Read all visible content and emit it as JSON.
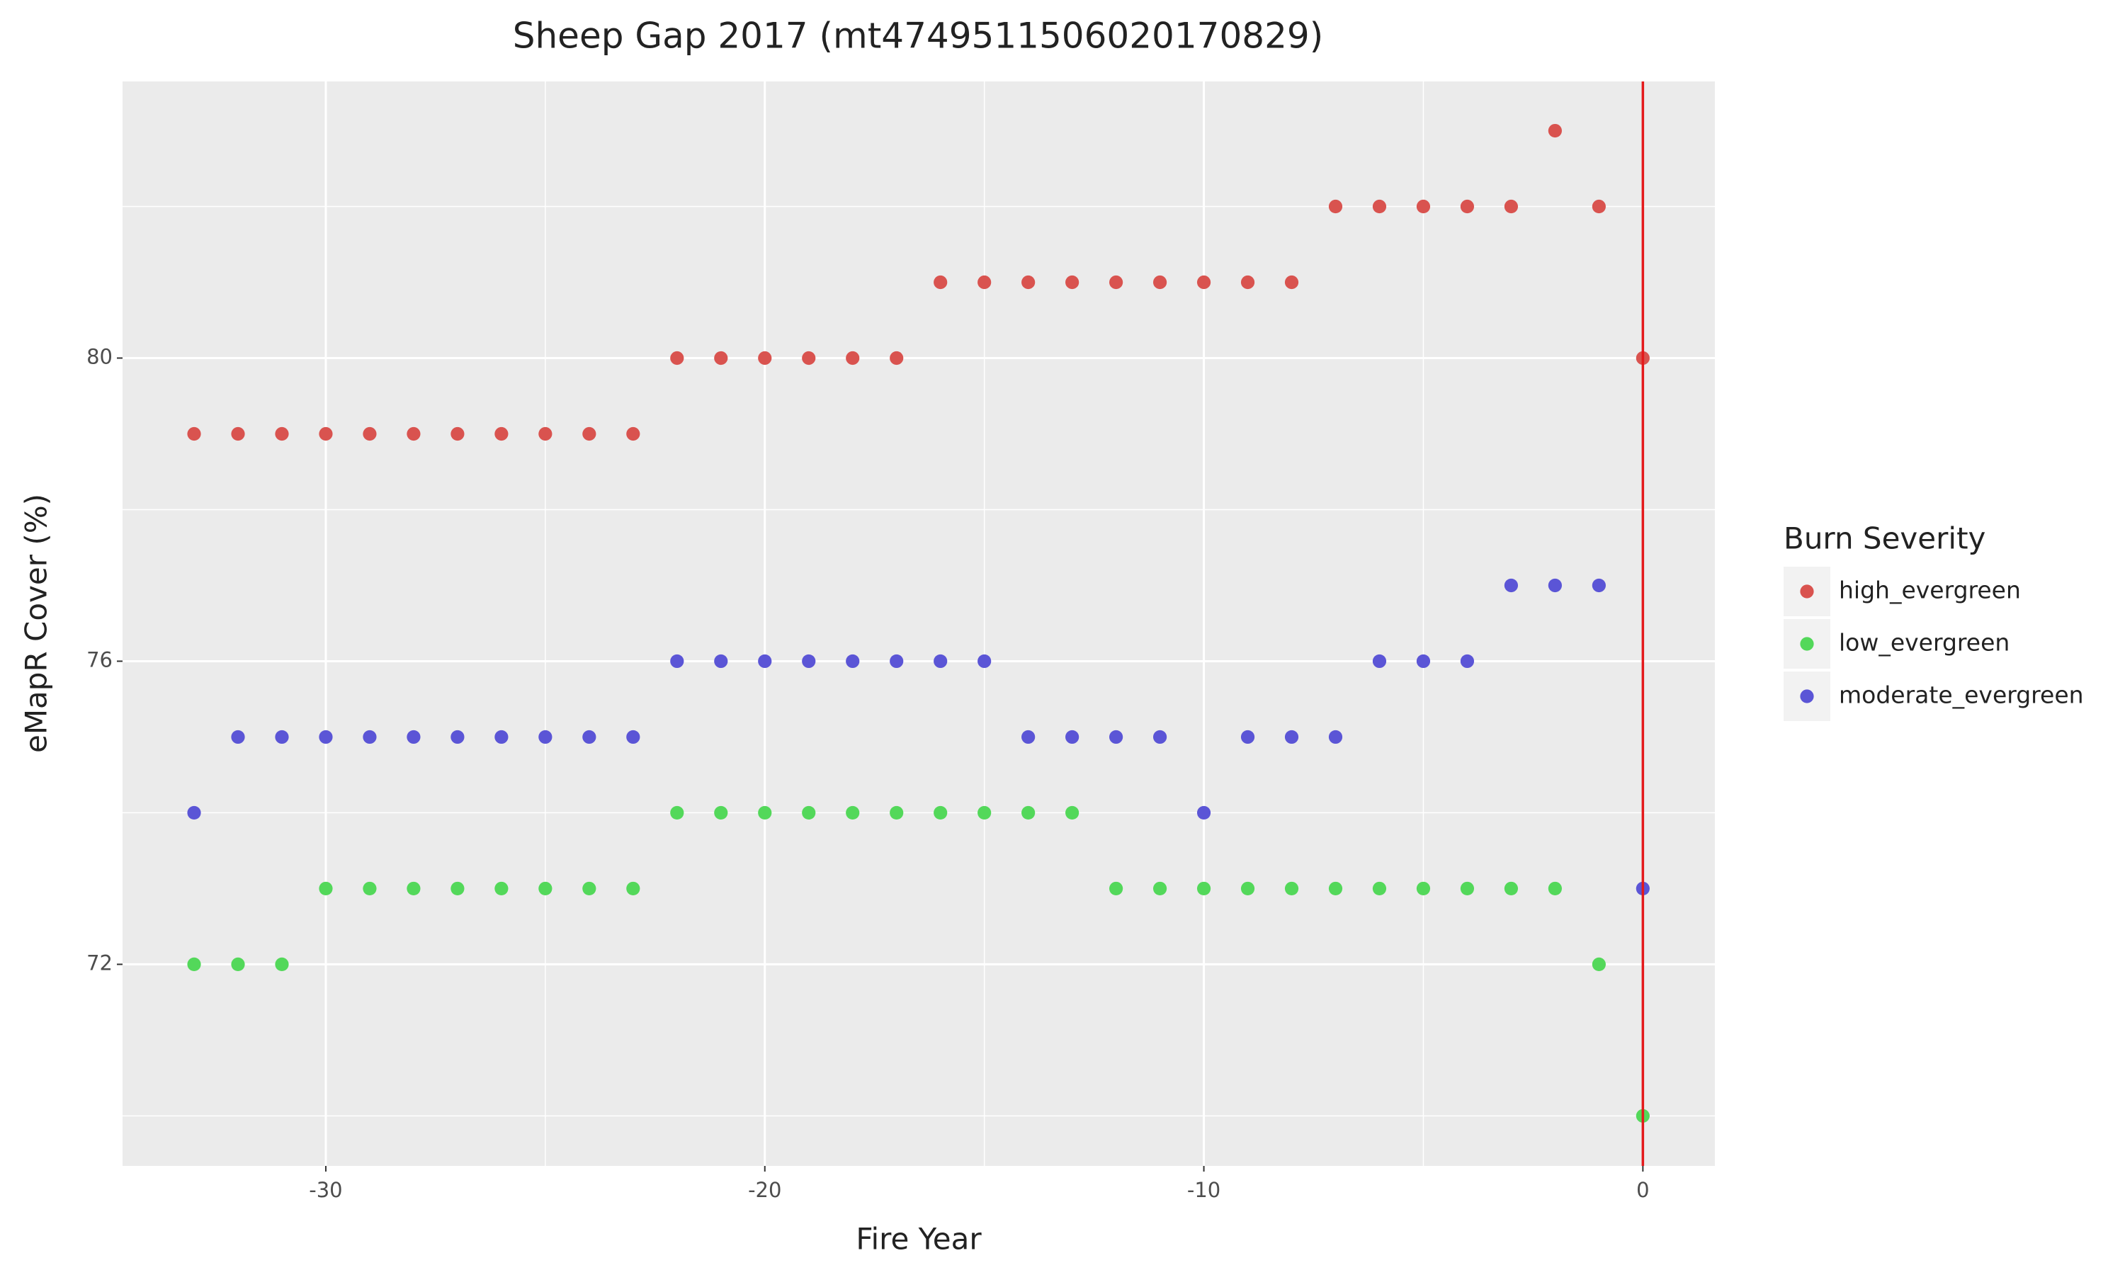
{
  "chart_data": {
    "type": "scatter",
    "title": "Sheep Gap 2017 (mt4749511506020170829)",
    "x_label": "Fire Year",
    "y_label": "eMapR Cover (%)",
    "legend_title": "Burn Severity",
    "legend_position": "right",
    "grid": true,
    "xlim": [
      -34.63,
      1.64
    ],
    "ylim": [
      69.34,
      83.65
    ],
    "xticks": [
      -30,
      -20,
      -10,
      0
    ],
    "yticks": [
      72,
      76,
      80
    ],
    "xminor_ticks": [
      -25,
      -15,
      -5
    ],
    "yminor_ticks": [
      70,
      74,
      78,
      82
    ],
    "vline": {
      "x": 0,
      "color": "#e41a1c"
    },
    "series": [
      {
        "name": "high_evergreen",
        "color": "#d9534f",
        "x": [
          -33,
          -32,
          -31,
          -30,
          -29,
          -28,
          -27,
          -26,
          -25,
          -24,
          -23,
          -22,
          -21,
          -20,
          -19,
          -18,
          -17,
          -16,
          -15,
          -14,
          -13,
          -12,
          -11,
          -10,
          -9,
          -8,
          -7,
          -6,
          -5,
          -4,
          -3,
          -2,
          -1,
          0
        ],
        "values": [
          79,
          79,
          79,
          79,
          79,
          79,
          79,
          79,
          79,
          79,
          79,
          80,
          80,
          80,
          80,
          80,
          80,
          81,
          81,
          81,
          81,
          81,
          81,
          81,
          81,
          81,
          82,
          82,
          82,
          82,
          82,
          83,
          82,
          80
        ]
      },
      {
        "name": "low_evergreen",
        "color": "#53d85a",
        "x": [
          -33,
          -32,
          -31,
          -30,
          -29,
          -28,
          -27,
          -26,
          -25,
          -24,
          -23,
          -22,
          -21,
          -20,
          -19,
          -18,
          -17,
          -16,
          -15,
          -14,
          -13,
          -12,
          -11,
          -10,
          -9,
          -8,
          -7,
          -6,
          -5,
          -4,
          -3,
          -2,
          -1,
          0
        ],
        "values": [
          72,
          72,
          72,
          73,
          73,
          73,
          73,
          73,
          73,
          73,
          73,
          74,
          74,
          74,
          74,
          74,
          74,
          74,
          74,
          74,
          74,
          73,
          73,
          73,
          73,
          73,
          73,
          73,
          73,
          73,
          73,
          73,
          72,
          70
        ]
      },
      {
        "name": "moderate_evergreen",
        "color": "#5b55d6",
        "x": [
          -33,
          -32,
          -31,
          -30,
          -29,
          -28,
          -27,
          -26,
          -25,
          -24,
          -23,
          -22,
          -21,
          -20,
          -19,
          -18,
          -17,
          -16,
          -15,
          -14,
          -13,
          -12,
          -11,
          -10,
          -9,
          -8,
          -7,
          -6,
          -5,
          -4,
          -3,
          -2,
          -1,
          0
        ],
        "values": [
          74,
          75,
          75,
          75,
          75,
          75,
          75,
          75,
          75,
          75,
          75,
          76,
          76,
          76,
          76,
          76,
          76,
          76,
          76,
          75,
          75,
          75,
          75,
          74,
          75,
          75,
          75,
          76,
          76,
          76,
          77,
          77,
          77,
          73
        ]
      }
    ]
  }
}
